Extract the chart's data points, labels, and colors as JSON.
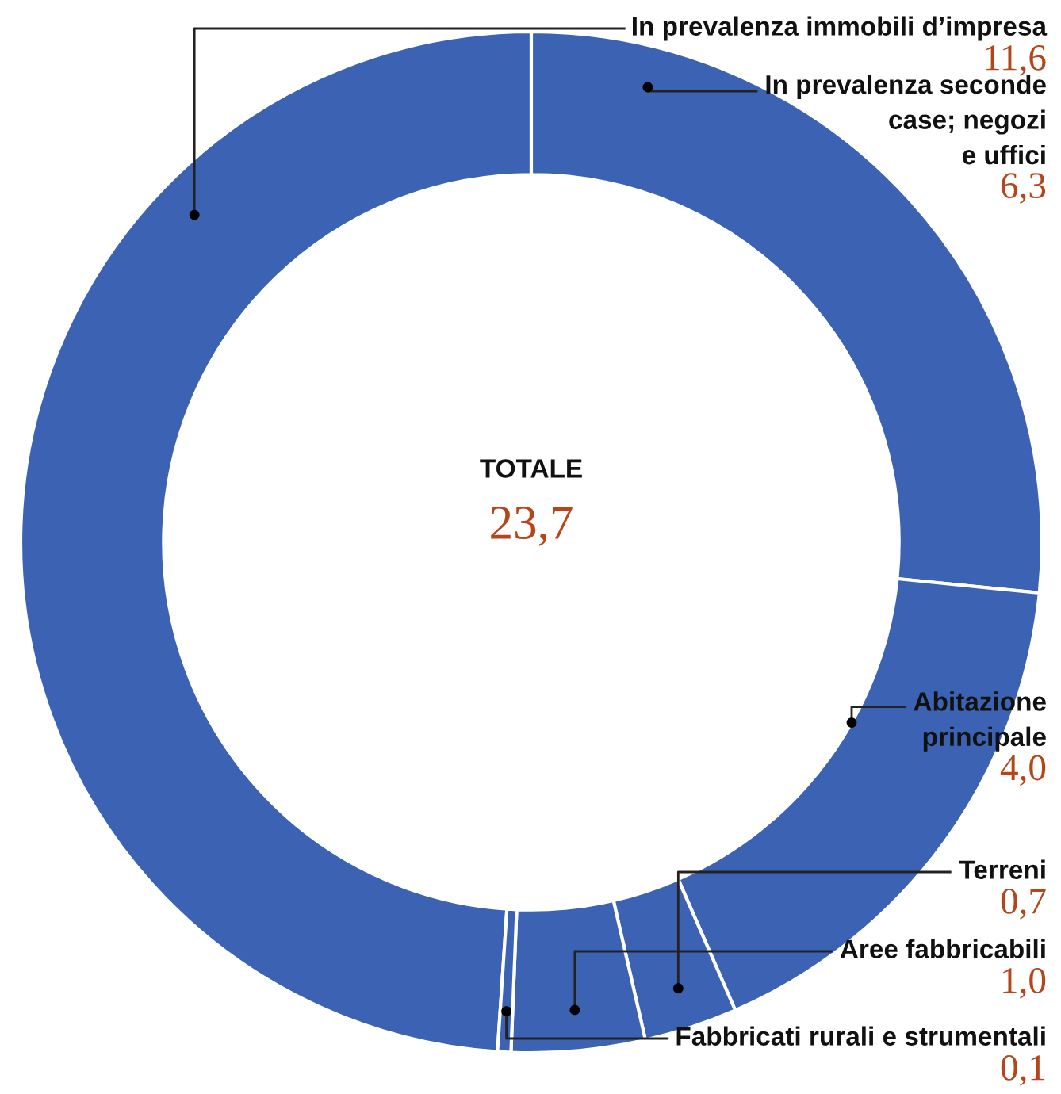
{
  "chart_data": {
    "type": "donut",
    "categories": [
      "In prevalenza immobili d’impresa",
      "In prevalenza seconde\ncase; negozi\ne uffici",
      "Abitazione\nprincipale",
      "Terreni",
      "Aree fabbricabili",
      "Fabbricati rurali e strumentali"
    ],
    "values": [
      11.6,
      6.3,
      4.0,
      0.7,
      1.0,
      0.1
    ],
    "value_labels": [
      "11,6",
      "6,3",
      "4,0",
      "0,7",
      "1,0",
      "0,1"
    ],
    "colors": [
      "#3c62b4",
      "#3c62b4",
      "#3c62b4",
      "#3c62b4",
      "#3c62b4",
      "#3c62b4"
    ],
    "annotations": [
      "TOTALE",
      "23,7"
    ]
  }
}
